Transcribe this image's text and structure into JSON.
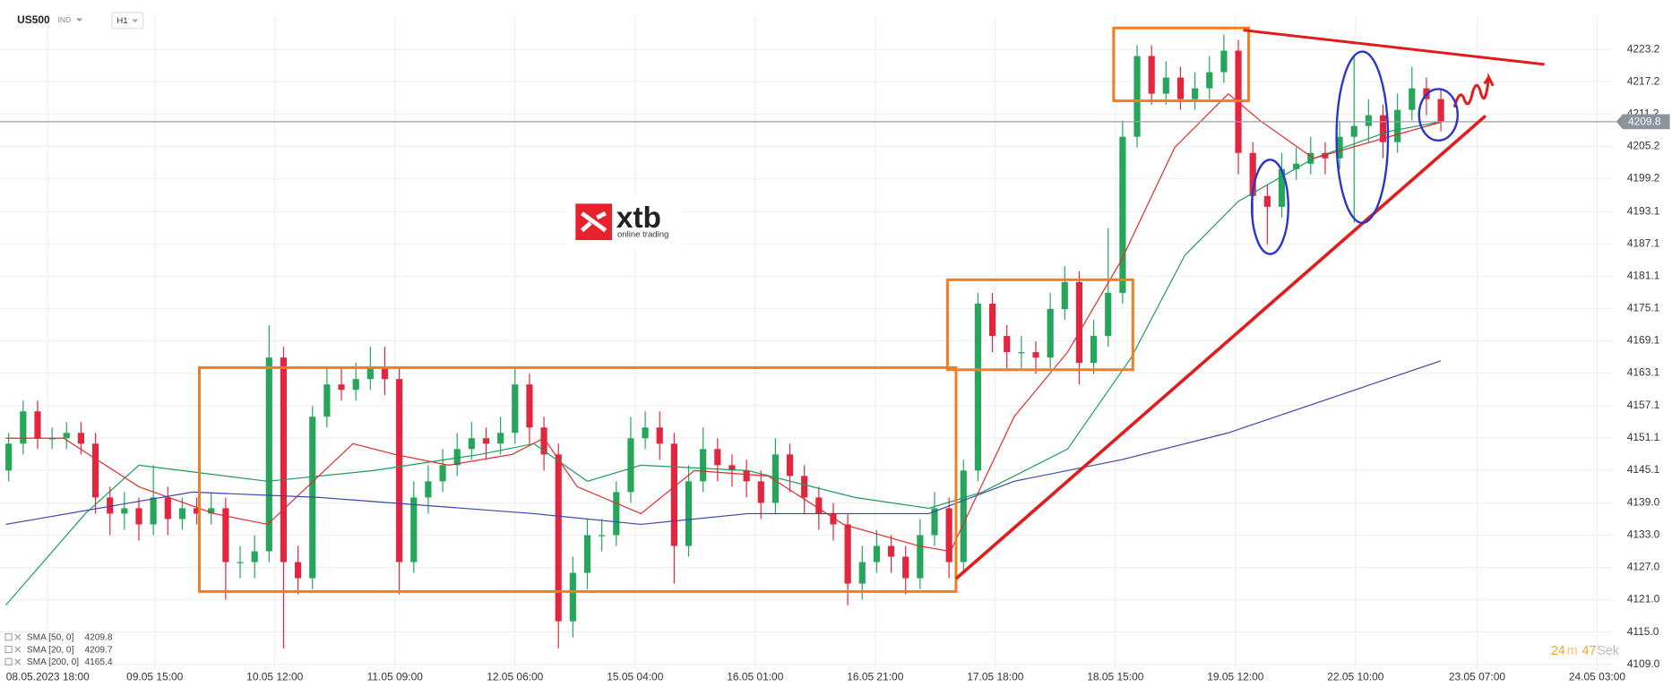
{
  "header": {
    "symbol": "US500",
    "market": "IND",
    "interval": "H1"
  },
  "logo": {
    "name": "xtb",
    "tagline": "online trading"
  },
  "countdown": {
    "minutes": "24",
    "minutes_unit": "m",
    "seconds": "47",
    "seconds_unit": "Sek"
  },
  "chart_data": {
    "type": "candlestick",
    "last_price": 4209.8,
    "xlim": [
      -0.6,
      110.9
    ],
    "ylim": [
      4108.0,
      4229.4
    ],
    "xticks": [
      {
        "value": 2.7,
        "label": "08.05.2023 18:00"
      },
      {
        "value": 10.1,
        "label": "09.05 15:00"
      },
      {
        "value": 18.4,
        "label": "10.05 12:00"
      },
      {
        "value": 26.7,
        "label": "11.05 09:00"
      },
      {
        "value": 35.0,
        "label": "12.05 06:00"
      },
      {
        "value": 43.3,
        "label": "15.05 04:00"
      },
      {
        "value": 51.6,
        "label": "16.05 01:00"
      },
      {
        "value": 59.9,
        "label": "16.05 21:00"
      },
      {
        "value": 68.2,
        "label": "17.05 18:00"
      },
      {
        "value": 76.5,
        "label": "18.05 15:00"
      },
      {
        "value": 84.8,
        "label": "19.05 12:00"
      },
      {
        "value": 93.1,
        "label": "22.05 10:00"
      },
      {
        "value": 101.5,
        "label": "23.05 07:00"
      },
      {
        "value": 109.8,
        "label": "24.05 03:00"
      }
    ],
    "yticks": [
      {
        "value": 4109,
        "label": "4109.0"
      },
      {
        "value": 4115,
        "label": "4115.0"
      },
      {
        "value": 4121,
        "label": "4121.0"
      },
      {
        "value": 4127,
        "label": "4127.0"
      },
      {
        "value": 4133,
        "label": "4133.0"
      },
      {
        "value": 4139,
        "label": "4139.0"
      },
      4145.1,
      4151.1,
      4157.1,
      4163.1,
      4169.1,
      4175.1,
      4181.1,
      4187.1,
      4193.1,
      4199.2,
      4205.2,
      4211.2,
      4217.2,
      4223.2
    ],
    "up_color": "#26a65b",
    "down_color": "#e2263f",
    "open": [
      4145,
      4150,
      4156,
      4151,
      4151,
      4152,
      4150,
      4140,
      4137,
      4138,
      4135,
      4140,
      4136,
      4138,
      4137,
      4138,
      4128,
      4128,
      4130,
      4166,
      4128,
      4125,
      4155,
      4161,
      4160,
      4162,
      4164,
      4162,
      4128,
      4140,
      4143,
      4146,
      4149,
      4151,
      4150,
      4152,
      4161,
      4153,
      4148,
      4117,
      4126,
      4133,
      4133,
      4141,
      4151,
      4153,
      4150,
      4131,
      4143,
      4149,
      4146,
      4145,
      4143,
      4139,
      4148,
      4144,
      4140,
      4137,
      4135,
      4124,
      4128,
      4131,
      4129,
      4125,
      4133,
      4138,
      4128,
      4145,
      4176,
      4170,
      4167,
      4167,
      4166,
      4175,
      4180,
      4165,
      4170,
      4178,
      4207,
      4222,
      4215,
      4218,
      4214,
      4216,
      4219,
      4223,
      4204,
      4196,
      4194,
      4201,
      4202,
      4204,
      4203,
      4207,
      4209,
      4211,
      4206,
      4212,
      4216,
      4214
    ],
    "high": [
      4152,
      4158,
      4158,
      4153,
      4154,
      4154,
      4152,
      4142,
      4141,
      4140,
      4146,
      4142,
      4140,
      4140,
      4141,
      4140,
      4131,
      4133,
      4172,
      4168,
      4131,
      4157,
      4164,
      4164,
      4165,
      4168,
      4168,
      4164,
      4143,
      4146,
      4149,
      4152,
      4154,
      4153,
      4155,
      4164,
      4163,
      4155,
      4150,
      4129,
      4136,
      4136,
      4143,
      4155,
      4156,
      4156,
      4152,
      4146,
      4153,
      4151,
      4148,
      4147,
      4145,
      4151,
      4150,
      4146,
      4142,
      4139,
      4137,
      4131,
      4134,
      4133,
      4131,
      4136,
      4141,
      4140,
      4147,
      4178,
      4178,
      4172,
      4170,
      4169,
      4178,
      4183,
      4182,
      4173,
      4190,
      4210,
      4224,
      4224,
      4221,
      4220,
      4219,
      4222,
      4226,
      4225,
      4206,
      4198,
      4204,
      4205,
      4207,
      4206,
      4210,
      4222,
      4214,
      4213,
      4215,
      4220,
      4218,
      4216
    ],
    "low": [
      4143,
      4148,
      4149,
      4149,
      4149,
      4148,
      4137,
      4133,
      4134,
      4132,
      4133,
      4133,
      4134,
      4135,
      4135,
      4121,
      4125,
      4125,
      4128,
      4112,
      4122,
      4123,
      4153,
      4158,
      4158,
      4160,
      4159,
      4122,
      4126,
      4137,
      4141,
      4144,
      4147,
      4147,
      4148,
      4150,
      4150,
      4145,
      4112,
      4114,
      4123,
      4130,
      4131,
      4139,
      4149,
      4147,
      4124,
      4129,
      4141,
      4143,
      4142,
      4140,
      4136,
      4137,
      4141,
      4137,
      4134,
      4132,
      4120,
      4121,
      4126,
      4126,
      4122,
      4123,
      4131,
      4125,
      4126,
      4143,
      4167,
      4164,
      4164,
      4163,
      4164,
      4173,
      4161,
      4163,
      4168,
      4176,
      4205,
      4213,
      4213,
      4212,
      4212,
      4214,
      4217,
      4200,
      4192,
      4187,
      4192,
      4199,
      4200,
      4200,
      4201,
      4191,
      4206,
      4203,
      4204,
      4210,
      4211,
      4208
    ],
    "close": [
      4150,
      4156,
      4151,
      4151,
      4152,
      4150,
      4140,
      4137,
      4138,
      4135,
      4140,
      4136,
      4138,
      4137,
      4138,
      4128,
      4128,
      4130,
      4166,
      4128,
      4125,
      4155,
      4161,
      4160,
      4162,
      4164,
      4162,
      4128,
      4140,
      4143,
      4146,
      4149,
      4151,
      4150,
      4152,
      4161,
      4153,
      4148,
      4117,
      4126,
      4133,
      4133,
      4141,
      4151,
      4153,
      4150,
      4131,
      4143,
      4149,
      4146,
      4145,
      4143,
      4139,
      4148,
      4144,
      4140,
      4137,
      4135,
      4124,
      4128,
      4131,
      4129,
      4125,
      4133,
      4138,
      4128,
      4145,
      4176,
      4170,
      4167,
      4167,
      4166,
      4175,
      4180,
      4165,
      4170,
      4178,
      4207,
      4222,
      4215,
      4218,
      4214,
      4216,
      4219,
      4223,
      4204,
      4196,
      4194,
      4201,
      4202,
      4204,
      4203,
      4207,
      4209,
      4211,
      4206,
      4212,
      4216,
      4214,
      4209.8
    ],
    "series": [
      {
        "name": "SMA [50, 0]",
        "color": "#1f9c5a",
        "x": [
          -0.2,
          5.3,
          9.0,
          12.0,
          17.9,
          25.2,
          32.6,
          36.3,
          40.0,
          43.7,
          51.1,
          58.5,
          63.6,
          67.3,
          73.2,
          77.6,
          81.3,
          85.0,
          90.2,
          95.4,
          99.0
        ],
        "values": [
          4120,
          4137,
          4146,
          4145,
          4143,
          4145,
          4148,
          4150,
          4143,
          4146,
          4145,
          4140,
          4138,
          4141,
          4149,
          4166,
          4185,
          4195,
          4203,
          4208,
          4209.8
        ]
      },
      {
        "name": "SMA [20, 0]",
        "color": "#e02b2b",
        "x": [
          -0.2,
          3.8,
          9.0,
          14.2,
          17.9,
          23.8,
          26.7,
          30.4,
          34.8,
          37.0,
          39.3,
          43.7,
          47.4,
          52.5,
          57.7,
          62.9,
          65.1,
          69.5,
          73.2,
          76.9,
          80.6,
          84.3,
          86.5,
          90.2,
          95.4,
          99.0
        ],
        "values": [
          4151,
          4151,
          4142,
          4137,
          4135,
          4150,
          4148,
          4146,
          4148,
          4151,
          4142,
          4137,
          4145,
          4144,
          4135,
          4131,
          4130,
          4155,
          4167,
          4184,
          4205,
          4215,
          4210,
          4203,
          4207,
          4209.7
        ]
      },
      {
        "name": "SMA [200, 0]",
        "color": "#3a48a8",
        "x": [
          -0.2,
          12.7,
          21.5,
          36.3,
          43.7,
          51.1,
          63.6,
          69.5,
          76.9,
          84.3,
          99.0
        ],
        "values": [
          4135,
          4141,
          4140,
          4137,
          4135,
          4137,
          4137,
          4143,
          4147,
          4152,
          4165.4
        ]
      }
    ]
  }
}
